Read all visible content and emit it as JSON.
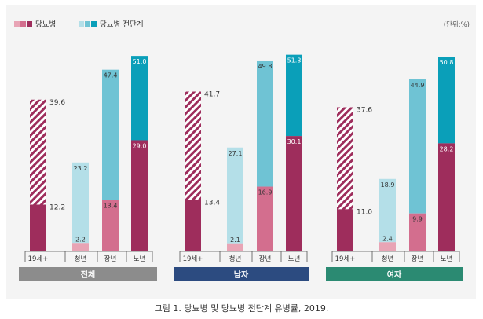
{
  "chart_data": {
    "type": "bar",
    "unit_label": "(단위:%)",
    "legend": [
      {
        "label": "당뇨병",
        "colors": [
          "#e8a4b5",
          "#d36e8e",
          "#9e2d5c"
        ]
      },
      {
        "label": "당뇨병 전단계",
        "colors": [
          "#b4dfe8",
          "#6fc3d4",
          "#0a9fb9"
        ]
      }
    ],
    "categories": [
      "19세+",
      "청년",
      "장년",
      "노년"
    ],
    "ylim": [
      0,
      55
    ],
    "groups": [
      {
        "label": "전체",
        "label_color": "#8c8c8c",
        "diabetes": [
          12.2,
          2.2,
          13.4,
          29.0
        ],
        "prediabetes": [
          39.6,
          23.2,
          47.4,
          51.0
        ],
        "value_labels": {
          "diabetes": [
            "12.2",
            "2.2",
            "13.4",
            "29.0"
          ],
          "prediabetes": [
            "39.6",
            "23.2",
            "47.4",
            "51.0"
          ]
        }
      },
      {
        "label": "남자",
        "label_color": "#2c4b80",
        "diabetes": [
          13.4,
          2.1,
          16.9,
          30.1
        ],
        "prediabetes": [
          41.7,
          27.1,
          49.8,
          51.3
        ],
        "value_labels": {
          "diabetes": [
            "13.4",
            "2.1",
            "16.9",
            "30.1"
          ],
          "prediabetes": [
            "41.7",
            "27.1",
            "49.8",
            "51.3"
          ]
        }
      },
      {
        "label": "여자",
        "label_color": "#2b8a72",
        "diabetes": [
          11.0,
          2.4,
          9.9,
          28.2
        ],
        "prediabetes": [
          37.6,
          18.9,
          44.9,
          50.8
        ],
        "value_labels": {
          "diabetes": [
            "11.0",
            "2.4",
            "9.9",
            "28.2"
          ],
          "prediabetes": [
            "37.6",
            "18.9",
            "44.9",
            "50.8"
          ]
        }
      }
    ],
    "colors": {
      "hatch": "#9e2d5c",
      "diabetes": {
        "청년": "#e8a4b5",
        "장년": "#d36e8e",
        "노년": "#9e2d5c"
      },
      "prediabetes": {
        "청년": "#b4dfe8",
        "장년": "#6fc3d4",
        "노년": "#0a9fb9"
      }
    }
  },
  "caption": "그림 1. 당뇨병 및 당뇨병 전단계 유병률, 2019."
}
